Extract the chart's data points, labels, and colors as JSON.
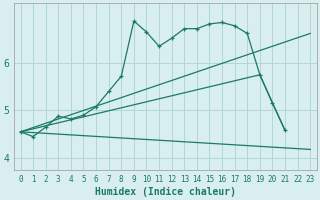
{
  "xlabel": "Humidex (Indice chaleur)",
  "bg_color": "#d9eeee",
  "grid_color": "#b0d8d8",
  "line_color": "#1a7a6a",
  "xlim": [
    -0.5,
    23.5
  ],
  "ylim": [
    3.75,
    7.25
  ],
  "yticks": [
    4,
    5,
    6
  ],
  "xticks": [
    0,
    1,
    2,
    3,
    4,
    5,
    6,
    7,
    8,
    9,
    10,
    11,
    12,
    13,
    14,
    15,
    16,
    17,
    18,
    19,
    20,
    21,
    22,
    23
  ],
  "lines": [
    {
      "x": [
        0,
        1,
        2,
        3,
        4,
        5,
        6,
        7,
        8,
        9,
        10,
        11,
        12,
        13,
        14,
        15,
        16,
        17,
        18,
        19,
        20,
        21
      ],
      "y": [
        4.55,
        4.45,
        4.65,
        4.88,
        4.82,
        4.9,
        5.08,
        5.4,
        5.72,
        6.88,
        6.65,
        6.35,
        6.52,
        6.72,
        6.72,
        6.82,
        6.85,
        6.78,
        6.62,
        5.75,
        5.15,
        4.58
      ],
      "marker": true,
      "solid": true
    },
    {
      "x": [
        0,
        23
      ],
      "y": [
        4.55,
        6.62
      ],
      "marker": false,
      "solid": true
    },
    {
      "x": [
        0,
        19,
        21
      ],
      "y": [
        4.55,
        5.75,
        4.58
      ],
      "marker": false,
      "solid": true
    },
    {
      "x": [
        0,
        23
      ],
      "y": [
        4.55,
        4.18
      ],
      "marker": false,
      "solid": true
    }
  ]
}
